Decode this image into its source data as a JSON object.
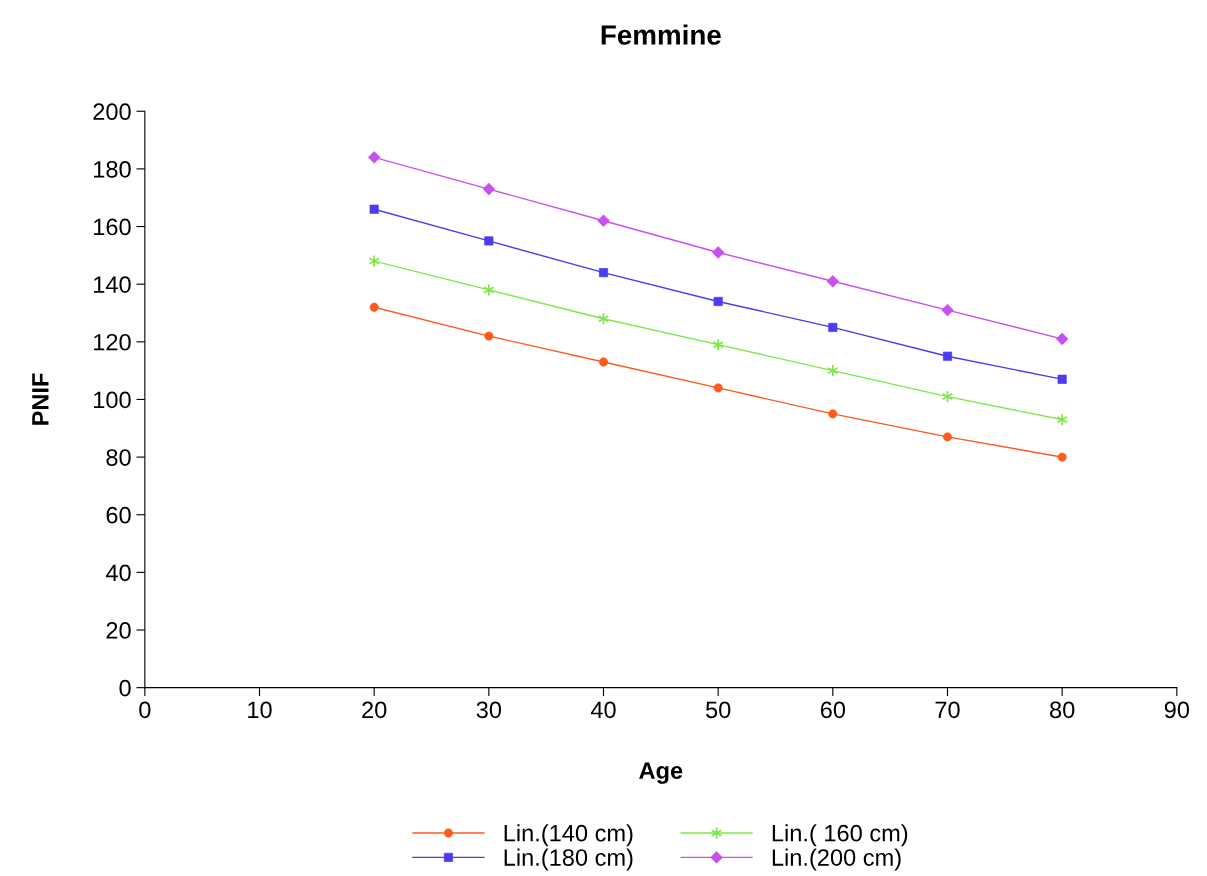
{
  "chart_data": {
    "type": "line",
    "title": "Femmine",
    "xlabel": "Age",
    "ylabel": "PNIF",
    "x": [
      20,
      30,
      40,
      50,
      60,
      70,
      80
    ],
    "series": [
      {
        "name": "Lin.(140 cm)",
        "color": "#ff5a1e",
        "marker": "circle",
        "values": [
          132,
          122,
          113,
          104,
          95,
          87,
          80
        ]
      },
      {
        "name": "Lin.(180 cm)",
        "color": "#4b3cf0",
        "marker": "square",
        "values": [
          166,
          155,
          144,
          134,
          125,
          115,
          107
        ]
      },
      {
        "name": "Lin.( 160 cm)",
        "color": "#7ee84a",
        "marker": "cross",
        "values": [
          148,
          138,
          128,
          119,
          110,
          101,
          93
        ]
      },
      {
        "name": "Lin.(200 cm)",
        "color": "#c850f0",
        "marker": "diamond",
        "values": [
          184,
          173,
          162,
          151,
          141,
          131,
          121
        ]
      }
    ],
    "xlim": [
      0,
      90
    ],
    "xticks": [
      0,
      10,
      20,
      30,
      40,
      50,
      60,
      70,
      80,
      90
    ],
    "ylim": [
      0,
      200
    ],
    "yticks": [
      0,
      20,
      40,
      60,
      80,
      100,
      120,
      140,
      160,
      180,
      200
    ],
    "grid": false,
    "legend": "bottom",
    "line_style": "solid"
  }
}
